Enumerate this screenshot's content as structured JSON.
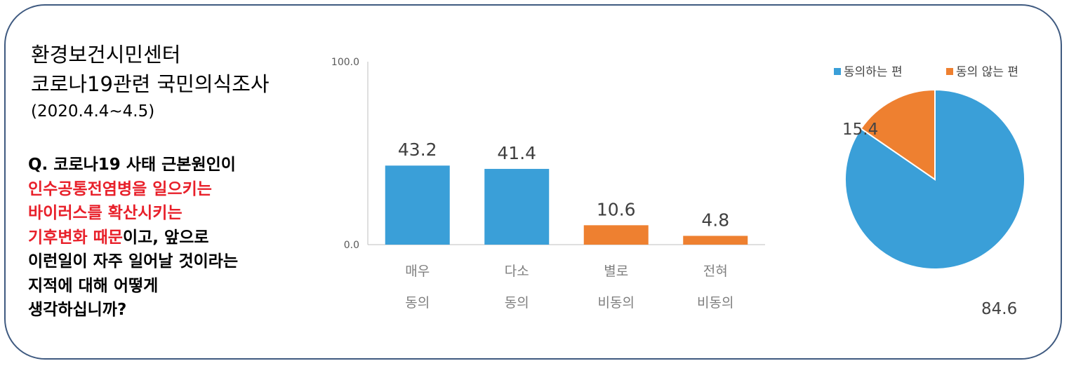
{
  "header": {
    "org": "환경보건시민센터",
    "survey": "코로나19관련 국민의식조사",
    "date": "(2020.4.4~4.5)"
  },
  "question": {
    "lines": [
      {
        "segments": [
          {
            "text": "Q. 코로나19 사태 근본원인이",
            "highlight": false
          }
        ]
      },
      {
        "segments": [
          {
            "text": "인수공통전염병을 일으키는",
            "highlight": true
          }
        ]
      },
      {
        "segments": [
          {
            "text": "바이러스를 확산시키는",
            "highlight": true
          }
        ]
      },
      {
        "segments": [
          {
            "text": "기후변화 때문",
            "highlight": true
          },
          {
            "text": "이고, 앞으로",
            "highlight": false
          }
        ]
      },
      {
        "segments": [
          {
            "text": "이런일이 자주 일어날 것이라는",
            "highlight": false
          }
        ]
      },
      {
        "segments": [
          {
            "text": "지적에 대해 어떻게",
            "highlight": false
          }
        ]
      },
      {
        "segments": [
          {
            "text": "생각하십니까?",
            "highlight": false
          }
        ]
      }
    ],
    "highlight_color": "#e8202a"
  },
  "chart_data": [
    {
      "type": "bar",
      "categories": [
        [
          "매우",
          "동의"
        ],
        [
          "다소",
          "동의"
        ],
        [
          "별로",
          "비동의"
        ],
        [
          "전혀",
          "비동의"
        ]
      ],
      "values": [
        43.2,
        41.4,
        10.6,
        4.8
      ],
      "value_labels": [
        "43.2",
        "41.4",
        "10.6",
        "4.8"
      ],
      "colors": [
        "#3a9fd8",
        "#3a9fd8",
        "#ee8030",
        "#ee8030"
      ],
      "ylim": [
        0,
        100
      ],
      "yticks": [
        "0.0",
        "100.0"
      ],
      "grid": false
    },
    {
      "type": "pie",
      "labels": [
        "동의하는 편",
        "동의 않는 편"
      ],
      "values": [
        84.6,
        15.4
      ],
      "value_labels": [
        "84.6",
        "15.4"
      ],
      "colors": [
        "#3a9fd8",
        "#ee8030"
      ],
      "legend": "top-right"
    }
  ]
}
